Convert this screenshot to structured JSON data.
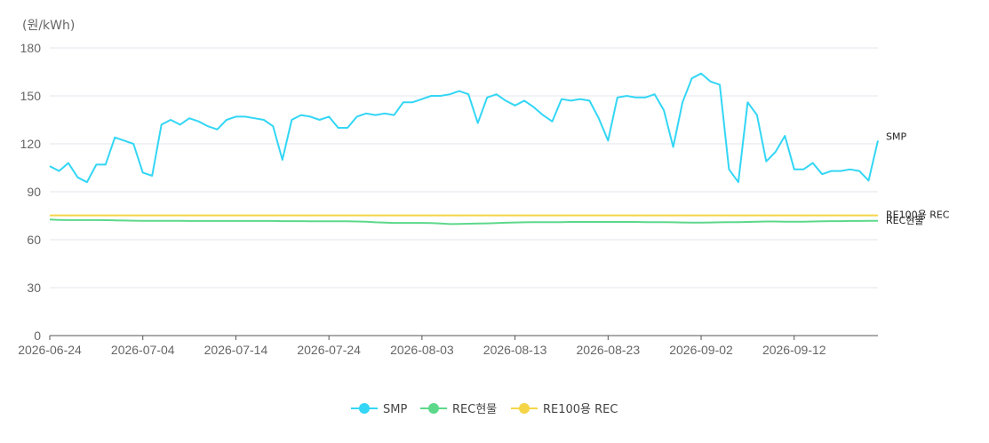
{
  "chart_data": {
    "type": "line",
    "y_unit": "(원/kWh)",
    "ylim": [
      0,
      180
    ],
    "yticks": [
      0,
      30,
      60,
      90,
      120,
      150,
      180
    ],
    "xlabels": [
      "2026-06-24",
      "2026-07-04",
      "2026-07-14",
      "2026-07-24",
      "2026-08-03",
      "2026-08-13",
      "2026-08-23",
      "2026-09-02",
      "2026-09-12"
    ],
    "grid": true,
    "legend_position": "bottom-center",
    "series": [
      {
        "name": "SMP",
        "color": "#33d6f5",
        "values": [
          106,
          103,
          108,
          99,
          96,
          107,
          107,
          124,
          122,
          120,
          102,
          100,
          132,
          135,
          132,
          136,
          134,
          131,
          129,
          135,
          137,
          137,
          136,
          135,
          131,
          110,
          135,
          138,
          137,
          135,
          137,
          130,
          130,
          137,
          139,
          138,
          139,
          138,
          146,
          146,
          148,
          150,
          150,
          151,
          153,
          151,
          133,
          149,
          151,
          147,
          144,
          147,
          143,
          138,
          134,
          148,
          147,
          148,
          147,
          136,
          122,
          149,
          150,
          149,
          149,
          151,
          141,
          118,
          146,
          161,
          164,
          159,
          157,
          104,
          96,
          146,
          138,
          109,
          115,
          125,
          104,
          104,
          108,
          101,
          103,
          103,
          104,
          103,
          97,
          122
        ]
      },
      {
        "name": "REC현물",
        "color": "#5dd88b",
        "values": [
          72.6,
          72.4,
          72.3,
          72.3,
          72.3,
          72.3,
          72.2,
          72.1,
          72.0,
          71.9,
          71.8,
          71.8,
          71.8,
          71.8,
          71.8,
          71.7,
          71.7,
          71.7,
          71.7,
          71.7,
          71.7,
          71.7,
          71.7,
          71.7,
          71.7,
          71.6,
          71.6,
          71.6,
          71.5,
          71.5,
          71.5,
          71.5,
          71.5,
          71.4,
          71.2,
          70.9,
          70.7,
          70.5,
          70.5,
          70.5,
          70.5,
          70.4,
          70.1,
          69.8,
          69.9,
          70.0,
          70.1,
          70.2,
          70.4,
          70.6,
          70.8,
          70.9,
          71.0,
          71.0,
          71.0,
          71.0,
          71.1,
          71.1,
          71.1,
          71.1,
          71.1,
          71.1,
          71.1,
          71.1,
          71.0,
          71.0,
          71.0,
          70.9,
          70.8,
          70.7,
          70.7,
          70.8,
          70.9,
          71.0,
          71.0,
          71.1,
          71.3,
          71.4,
          71.4,
          71.3,
          71.3,
          71.3,
          71.4,
          71.5,
          71.6,
          71.6,
          71.7,
          71.7,
          71.8,
          71.8
        ]
      },
      {
        "name": "RE100용 REC",
        "color": "#f5d547",
        "values": [
          75.2,
          75.2,
          75.2,
          75.2,
          75.2,
          75.2,
          75.2,
          75.2,
          75.2,
          75.2,
          75.2,
          75.2,
          75.2,
          75.2,
          75.2,
          75.2,
          75.2,
          75.2,
          75.2,
          75.2,
          75.2,
          75.2,
          75.2,
          75.2,
          75.2,
          75.2,
          75.2,
          75.2,
          75.2,
          75.2,
          75.2,
          75.2,
          75.2,
          75.2,
          75.2,
          75.2,
          75.2,
          75.2,
          75.2,
          75.2,
          75.2,
          75.2,
          75.2,
          75.2,
          75.2,
          75.2,
          75.2,
          75.2,
          75.2,
          75.2,
          75.2,
          75.2,
          75.2,
          75.2,
          75.2,
          75.2,
          75.2,
          75.2,
          75.2,
          75.2,
          75.2,
          75.2,
          75.2,
          75.2,
          75.2,
          75.2,
          75.2,
          75.2,
          75.2,
          75.2,
          75.2,
          75.2,
          75.2,
          75.2,
          75.2,
          75.2,
          75.2,
          75.2,
          75.2,
          75.2,
          75.2,
          75.2,
          75.2,
          75.2,
          75.2,
          75.2,
          75.2,
          75.2,
          75.2,
          75.2
        ]
      }
    ],
    "end_labels": [
      "SMP",
      "RE100용 REC",
      "REC현물"
    ]
  }
}
